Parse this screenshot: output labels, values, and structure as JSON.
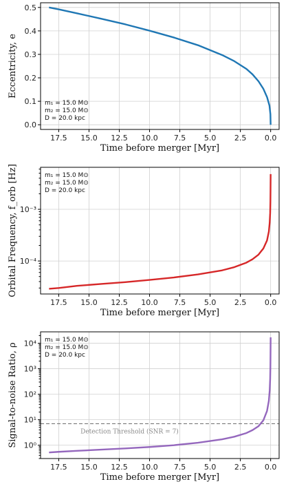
{
  "chart_data": [
    {
      "type": "line",
      "xlabel": "Time before merger [Myr]",
      "ylabel": "Eccentricity, e",
      "x_reversed": true,
      "xlim": [
        19.0,
        -0.7
      ],
      "ylim": [
        -0.02,
        0.52
      ],
      "yscale": "linear",
      "grid": true,
      "xticks": [
        17.5,
        15.0,
        12.5,
        10.0,
        7.5,
        5.0,
        2.5,
        0.0
      ],
      "xtick_labels": [
        "17.5",
        "15.0",
        "12.5",
        "10.0",
        "7.5",
        "5.0",
        "2.5",
        "0.0"
      ],
      "yticks": [
        0.0,
        0.1,
        0.2,
        0.3,
        0.4,
        0.5
      ],
      "ytick_labels": [
        "0.0",
        "0.1",
        "0.2",
        "0.3",
        "0.4",
        "0.5"
      ],
      "annotation_lines": [
        "m₁ = 15.0 M⊙",
        "m₂ = 15.0 M⊙",
        "D = 20.0 kpc"
      ],
      "annotation_placement": "lower-left",
      "series": [
        {
          "color": "#1f77b4",
          "x": [
            18.3,
            17.5,
            16.0,
            14.0,
            12.0,
            10.0,
            8.0,
            6.0,
            4.0,
            3.0,
            2.0,
            1.5,
            1.0,
            0.6,
            0.3,
            0.1,
            0.02,
            0.0
          ],
          "y": [
            0.5,
            0.492,
            0.475,
            0.452,
            0.428,
            0.401,
            0.372,
            0.339,
            0.297,
            0.271,
            0.238,
            0.215,
            0.185,
            0.153,
            0.118,
            0.082,
            0.045,
            0.0
          ]
        }
      ]
    },
    {
      "type": "line",
      "xlabel": "Time before merger [Myr]",
      "ylabel": "Orbital Frequency, f_orb [Hz]",
      "x_reversed": true,
      "xlim": [
        19.0,
        -0.7
      ],
      "ylim": [
        2.3e-05,
        0.0065
      ],
      "yscale": "log",
      "grid": true,
      "xticks": [
        17.5,
        15.0,
        12.5,
        10.0,
        7.5,
        5.0,
        2.5,
        0.0
      ],
      "xtick_labels": [
        "17.5",
        "15.0",
        "12.5",
        "10.0",
        "7.5",
        "5.0",
        "2.5",
        "0.0"
      ],
      "yticks": [
        0.0001,
        0.001
      ],
      "ytick_labels": [
        "10⁻⁴",
        "10⁻³"
      ],
      "annotation_lines": [
        "m₁ = 15.0 M⊙",
        "m₂ = 15.0 M⊙",
        "D = 20.0 kpc"
      ],
      "annotation_placement": "upper-left",
      "series": [
        {
          "color": "#d62728",
          "x": [
            18.3,
            17.5,
            16.0,
            14.0,
            12.0,
            10.0,
            8.0,
            6.0,
            4.0,
            3.0,
            2.0,
            1.5,
            1.0,
            0.6,
            0.3,
            0.15,
            0.08,
            0.04,
            0.02,
            0.01,
            0.0
          ],
          "y": [
            2.9e-05,
            3e-05,
            3.3e-05,
            3.6e-05,
            3.9e-05,
            4.3e-05,
            4.8e-05,
            5.5e-05,
            6.6e-05,
            7.6e-05,
            9.3e-05,
            0.000108,
            0.000133,
            0.000175,
            0.00025,
            0.00037,
            0.00055,
            0.00085,
            0.0014,
            0.0024,
            0.0048
          ]
        }
      ]
    },
    {
      "type": "line",
      "xlabel": "Time before merger [Myr]",
      "ylabel": "Signal-to-noise Ratio, ρ",
      "x_reversed": true,
      "xlim": [
        19.0,
        -0.7
      ],
      "ylim": [
        0.3,
        28000
      ],
      "yscale": "log",
      "grid": true,
      "xticks": [
        17.5,
        15.0,
        12.5,
        10.0,
        7.5,
        5.0,
        2.5,
        0.0
      ],
      "xtick_labels": [
        "17.5",
        "15.0",
        "12.5",
        "10.0",
        "7.5",
        "5.0",
        "2.5",
        "0.0"
      ],
      "yticks": [
        1,
        10,
        100,
        1000,
        10000
      ],
      "ytick_labels": [
        "10⁰",
        "10¹",
        "10²",
        "10³",
        "10⁴"
      ],
      "annotation_lines": [
        "m₁ = 15.0 M⊙",
        "m₂ = 15.0 M⊙",
        "D = 20.0 kpc"
      ],
      "annotation_placement": "upper-left",
      "threshold": {
        "value": 7,
        "label": "Detection Threshold (SNR = 7)",
        "color": "#666666"
      },
      "series": [
        {
          "color": "#9467bd",
          "x": [
            18.3,
            17.5,
            16.0,
            14.0,
            12.0,
            10.0,
            8.0,
            6.0,
            4.0,
            3.0,
            2.0,
            1.5,
            1.0,
            0.6,
            0.3,
            0.15,
            0.08,
            0.04,
            0.02,
            0.01,
            0.0
          ],
          "y": [
            0.52,
            0.55,
            0.6,
            0.67,
            0.75,
            0.85,
            1.0,
            1.25,
            1.7,
            2.15,
            3.0,
            3.9,
            5.6,
            9.5,
            22,
            55,
            140,
            400,
            1200,
            4000,
            17000
          ]
        }
      ]
    }
  ]
}
